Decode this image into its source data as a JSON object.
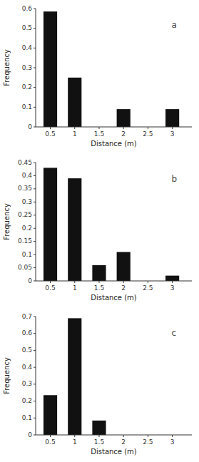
{
  "chart_data": [
    {
      "type": "bar",
      "title": "a",
      "xlabel": "Distance (m)",
      "ylabel": "Frequency",
      "x": [
        0.5,
        1.0,
        2.0,
        3.0
      ],
      "values": [
        0.585,
        0.25,
        0.09,
        0.09
      ],
      "color": "#111111",
      "xlim": [
        0.2,
        3.4
      ],
      "xticks": [
        0.5,
        1,
        1.5,
        2,
        2.5,
        3
      ],
      "ylim": [
        0,
        0.6
      ],
      "yticks": [
        0,
        0.1,
        0.2,
        0.3,
        0.4,
        0.5,
        0.6
      ],
      "grid": false
    },
    {
      "type": "bar",
      "title": "b",
      "xlabel": "Distance (m)",
      "ylabel": "Frequency",
      "x": [
        0.5,
        1.0,
        1.5,
        2.0,
        3.0
      ],
      "values": [
        0.43,
        0.39,
        0.06,
        0.11,
        0.02
      ],
      "color": "#111111",
      "xlim": [
        0.2,
        3.4
      ],
      "xticks": [
        0.5,
        1,
        1.5,
        2,
        2.5,
        3
      ],
      "ylim": [
        0,
        0.45
      ],
      "yticks": [
        0,
        0.05,
        0.1,
        0.15,
        0.2,
        0.25,
        0.3,
        0.35,
        0.4,
        0.45
      ],
      "grid": false
    },
    {
      "type": "bar",
      "title": "c",
      "xlabel": "Distance (m)",
      "ylabel": "Frequency",
      "x": [
        0.5,
        1.0,
        1.5
      ],
      "values": [
        0.235,
        0.69,
        0.085
      ],
      "color": "#111111",
      "xlim": [
        0.2,
        3.4
      ],
      "xticks": [
        0.5,
        1,
        1.5,
        2,
        2.5,
        3
      ],
      "ylim": [
        0,
        0.7
      ],
      "yticks": [
        0,
        0.1,
        0.2,
        0.3,
        0.4,
        0.5,
        0.6,
        0.7
      ],
      "grid": false
    }
  ]
}
